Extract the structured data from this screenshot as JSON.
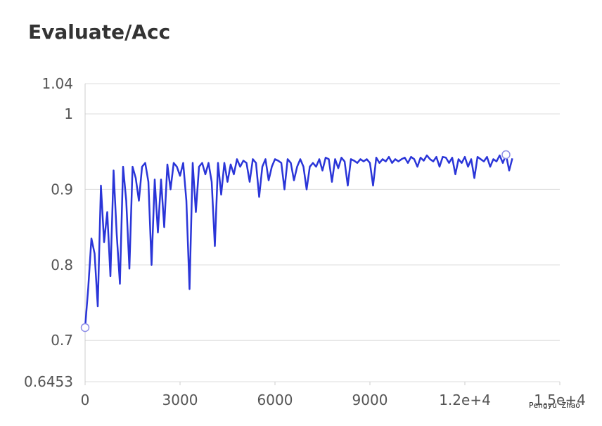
{
  "chart_data": {
    "type": "line",
    "title": "Evaluate/Acc",
    "author": "Pengyu Zhao",
    "x": [
      0,
      100,
      200,
      300,
      400,
      500,
      600,
      700,
      800,
      900,
      1000,
      1100,
      1200,
      1300,
      1400,
      1500,
      1600,
      1700,
      1800,
      1900,
      2000,
      2100,
      2200,
      2300,
      2400,
      2500,
      2600,
      2700,
      2800,
      2900,
      3000,
      3100,
      3200,
      3300,
      3400,
      3500,
      3600,
      3700,
      3800,
      3900,
      4000,
      4100,
      4200,
      4300,
      4400,
      4500,
      4600,
      4700,
      4800,
      4900,
      5000,
      5100,
      5200,
      5300,
      5400,
      5500,
      5600,
      5700,
      5800,
      5900,
      6000,
      6100,
      6200,
      6300,
      6400,
      6500,
      6600,
      6700,
      6800,
      6900,
      7000,
      7100,
      7200,
      7300,
      7400,
      7500,
      7600,
      7700,
      7800,
      7900,
      8000,
      8100,
      8200,
      8300,
      8400,
      8500,
      8600,
      8700,
      8800,
      8900,
      9000,
      9100,
      9200,
      9300,
      9400,
      9500,
      9600,
      9700,
      9800,
      9900,
      10000,
      10100,
      10200,
      10300,
      10400,
      10500,
      10600,
      10700,
      10800,
      10900,
      11000,
      11100,
      11200,
      11300,
      11400,
      11500,
      11600,
      11700,
      11800,
      11900,
      12000,
      12100,
      12200,
      12300,
      12400,
      12500,
      12600,
      12700,
      12800,
      12900,
      13000,
      13100,
      13200,
      13300,
      13400,
      13500
    ],
    "series": [
      {
        "name": "Evaluate/Acc",
        "color": "#2a35d8",
        "values": [
          0.717,
          0.77,
          0.835,
          0.815,
          0.745,
          0.905,
          0.83,
          0.87,
          0.785,
          0.925,
          0.84,
          0.775,
          0.93,
          0.885,
          0.795,
          0.93,
          0.915,
          0.885,
          0.93,
          0.935,
          0.91,
          0.8,
          0.913,
          0.843,
          0.913,
          0.85,
          0.933,
          0.9,
          0.935,
          0.93,
          0.918,
          0.935,
          0.885,
          0.768,
          0.935,
          0.87,
          0.93,
          0.935,
          0.92,
          0.935,
          0.91,
          0.825,
          0.935,
          0.893,
          0.935,
          0.91,
          0.933,
          0.92,
          0.94,
          0.93,
          0.938,
          0.935,
          0.91,
          0.94,
          0.935,
          0.89,
          0.93,
          0.94,
          0.912,
          0.93,
          0.94,
          0.938,
          0.935,
          0.9,
          0.94,
          0.935,
          0.912,
          0.93,
          0.94,
          0.93,
          0.9,
          0.93,
          0.935,
          0.93,
          0.94,
          0.925,
          0.942,
          0.94,
          0.91,
          0.94,
          0.928,
          0.942,
          0.937,
          0.905,
          0.94,
          0.938,
          0.935,
          0.94,
          0.937,
          0.94,
          0.935,
          0.905,
          0.942,
          0.935,
          0.94,
          0.937,
          0.943,
          0.935,
          0.94,
          0.937,
          0.94,
          0.942,
          0.935,
          0.943,
          0.94,
          0.93,
          0.942,
          0.938,
          0.945,
          0.94,
          0.937,
          0.943,
          0.93,
          0.943,
          0.942,
          0.935,
          0.942,
          0.92,
          0.94,
          0.935,
          0.943,
          0.93,
          0.94,
          0.915,
          0.943,
          0.94,
          0.937,
          0.943,
          0.93,
          0.94,
          0.937,
          0.945,
          0.935,
          0.946,
          0.925,
          0.941
        ]
      }
    ],
    "xlim": [
      0,
      15000
    ],
    "xticks": [
      0,
      3000,
      6000,
      9000,
      {
        "value": 12000,
        "label": "1.2e+4"
      },
      {
        "value": 15000,
        "label": "1.5e+4"
      }
    ],
    "ylim": [
      0.6453,
      1.04
    ],
    "yticks": [
      0.6453,
      0.7,
      0.8,
      0.9,
      1,
      1.04
    ],
    "grid": true
  }
}
